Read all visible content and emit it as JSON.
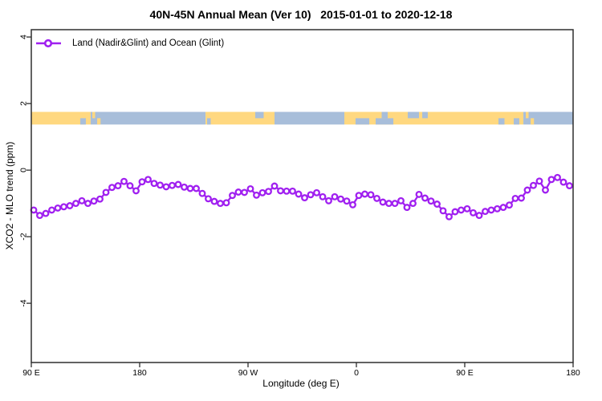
{
  "title": "40N-45N Annual Mean (Ver 10)   2015-01-01 to 2020-12-18",
  "colors": {
    "series": "#A020F0",
    "land": "#FFD880",
    "ocean": "#A8BEDA",
    "axis": "#2E2E2E",
    "background": "#FFFFFF"
  },
  "legend": {
    "label": "Land (Nadir&Glint) and Ocean (Glint)"
  },
  "chart_data": {
    "type": "line",
    "title": "40N-45N Annual Mean (Ver 10)   2015-01-01 to 2020-12-18",
    "xlabel": "Longitude (deg E)",
    "ylabel": "XCO2 - MLO trend (ppm)",
    "xlim_deg": [
      90,
      540
    ],
    "ylim": [
      -5.78,
      4.22
    ],
    "grid": false,
    "legend_position": "top-left-inside",
    "x_ticks": [
      {
        "deg": 90,
        "label": "90 E"
      },
      {
        "deg": 180,
        "label": "180"
      },
      {
        "deg": 270,
        "label": "90 W"
      },
      {
        "deg": 360,
        "label": "0"
      },
      {
        "deg": 450,
        "label": "90 E"
      },
      {
        "deg": 540,
        "label": "180"
      }
    ],
    "y_ticks": [
      {
        "v": 4,
        "label": "4"
      },
      {
        "v": 2,
        "label": "2"
      },
      {
        "v": 0,
        "label": "0"
      },
      {
        "v": -2,
        "label": "-2"
      },
      {
        "v": -4,
        "label": "-4"
      }
    ],
    "series": [
      {
        "name": "Land (Nadir&Glint) and Ocean (Glint)",
        "color": "#A020F0",
        "marker": "open-circle",
        "x_start_deg": 92,
        "x_step_deg": 5,
        "values": [
          -1.2,
          -1.36,
          -1.3,
          -1.2,
          -1.14,
          -1.1,
          -1.07,
          -1.0,
          -0.92,
          -1.0,
          -0.93,
          -0.87,
          -0.67,
          -0.52,
          -0.47,
          -0.34,
          -0.47,
          -0.62,
          -0.35,
          -0.28,
          -0.4,
          -0.45,
          -0.5,
          -0.46,
          -0.43,
          -0.51,
          -0.55,
          -0.55,
          -0.7,
          -0.86,
          -0.94,
          -1.0,
          -0.98,
          -0.76,
          -0.66,
          -0.67,
          -0.56,
          -0.75,
          -0.68,
          -0.64,
          -0.48,
          -0.62,
          -0.63,
          -0.63,
          -0.72,
          -0.83,
          -0.74,
          -0.68,
          -0.8,
          -0.92,
          -0.8,
          -0.87,
          -0.93,
          -1.04,
          -0.76,
          -0.72,
          -0.74,
          -0.85,
          -0.96,
          -1.0,
          -1.0,
          -0.92,
          -1.12,
          -1.0,
          -0.73,
          -0.84,
          -0.93,
          -1.02,
          -1.22,
          -1.4,
          -1.25,
          -1.2,
          -1.16,
          -1.28,
          -1.36,
          -1.24,
          -1.2,
          -1.16,
          -1.12,
          -1.05,
          -0.85,
          -0.84,
          -0.6,
          -0.46,
          -0.33,
          -0.6,
          -0.28,
          -0.22,
          -0.36,
          -0.47
        ]
      }
    ],
    "land_ocean_strip": {
      "value_top": 1.75,
      "value_bottom": 1.37,
      "base": [
        {
          "from": 90,
          "to": 139.3,
          "kind": "land"
        },
        {
          "from": 139.3,
          "to": 234.7,
          "kind": "ocean"
        },
        {
          "from": 234.7,
          "to": 292,
          "kind": "land"
        },
        {
          "from": 292,
          "to": 350,
          "kind": "ocean"
        },
        {
          "from": 350,
          "to": 498.7,
          "kind": "land"
        },
        {
          "from": 498.7,
          "to": 540,
          "kind": "ocean"
        }
      ],
      "patches": [
        {
          "from": 130.7,
          "to": 135.3,
          "kind": "ocean",
          "part": "bottom"
        },
        {
          "from": 140.7,
          "to": 143.0,
          "kind": "land",
          "part": "top"
        },
        {
          "from": 144.7,
          "to": 147.5,
          "kind": "land",
          "part": "bottom"
        },
        {
          "from": 236.0,
          "to": 239.0,
          "kind": "ocean",
          "part": "bottom"
        },
        {
          "from": 276.0,
          "to": 283.0,
          "kind": "ocean",
          "part": "top"
        },
        {
          "from": 359.3,
          "to": 370.7,
          "kind": "ocean",
          "part": "bottom"
        },
        {
          "from": 376.0,
          "to": 390.7,
          "kind": "ocean",
          "part": "bottom"
        },
        {
          "from": 381.0,
          "to": 386.0,
          "kind": "ocean",
          "part": "top"
        },
        {
          "from": 402.7,
          "to": 412.0,
          "kind": "ocean",
          "part": "top"
        },
        {
          "from": 414.7,
          "to": 419.3,
          "kind": "ocean",
          "part": "top"
        },
        {
          "from": 478.0,
          "to": 483.0,
          "kind": "ocean",
          "part": "bottom"
        },
        {
          "from": 490.7,
          "to": 495.3,
          "kind": "ocean",
          "part": "bottom"
        },
        {
          "from": 500.7,
          "to": 503.0,
          "kind": "land",
          "part": "top"
        },
        {
          "from": 504.7,
          "to": 507.5,
          "kind": "land",
          "part": "bottom"
        }
      ]
    }
  }
}
